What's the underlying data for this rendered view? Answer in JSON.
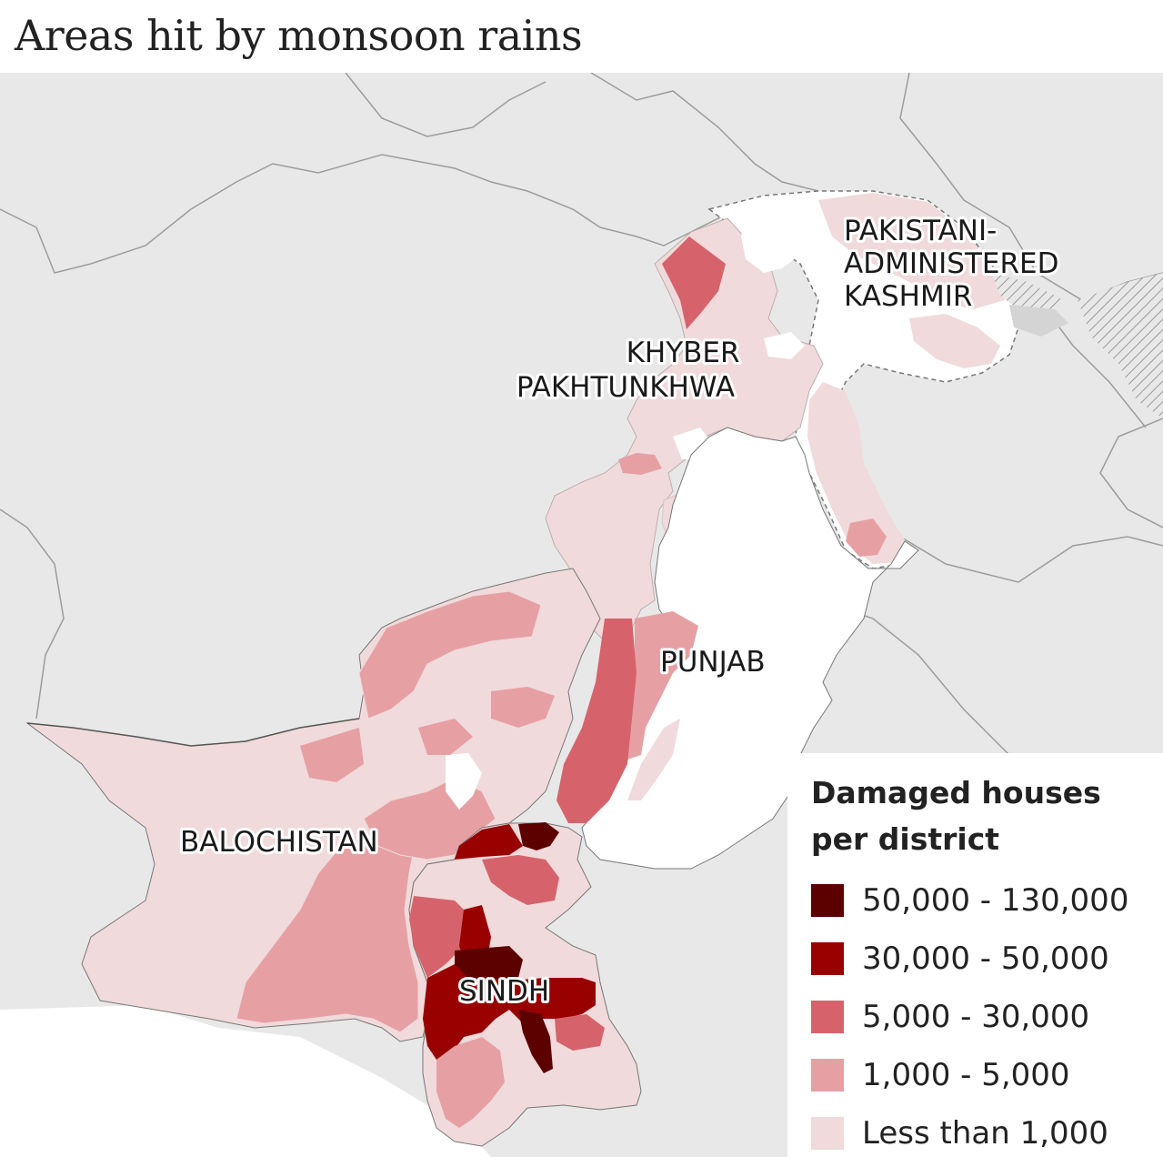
{
  "title": "Areas hit by monsoon rains",
  "regions": [
    {
      "id": "kashmir",
      "lines": [
        "PAKISTANI-",
        "ADMINISTERED",
        "KASHMIR"
      ]
    },
    {
      "id": "khyber",
      "lines": [
        "KHYBER",
        "PAKHTUNKHWA"
      ]
    },
    {
      "id": "punjab",
      "lines": [
        "PUNJAB"
      ]
    },
    {
      "id": "balochistan",
      "lines": [
        "BALOCHISTAN"
      ]
    },
    {
      "id": "sindh",
      "lines": [
        "SINDH"
      ]
    }
  ],
  "legend": {
    "title_lines": [
      "Damaged houses",
      "per district"
    ],
    "items": [
      {
        "label": "50,000 - 130,000",
        "color": "#5c0000"
      },
      {
        "label": "30,000 - 50,000",
        "color": "#990000"
      },
      {
        "label": "5,000 - 30,000",
        "color": "#d6636b"
      },
      {
        "label": "1,000 - 5,000",
        "color": "#e6a0a4"
      },
      {
        "label": "Less than 1,000",
        "color": "#f0dadb"
      }
    ]
  },
  "colors": {
    "background": "#e8e8e8",
    "no_data": "#ffffff",
    "disputed": "#d4d4d4",
    "border": "#555555",
    "neighbor_border": "#9c9c9c"
  }
}
